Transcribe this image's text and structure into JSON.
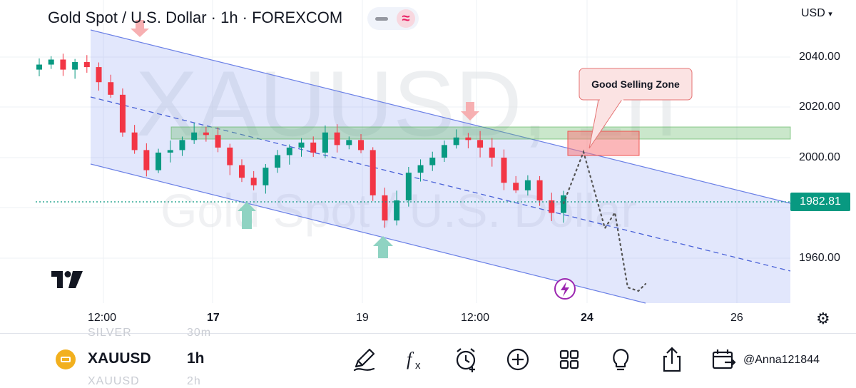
{
  "header": {
    "title": "Gold Spot / U.S. Dollar · 1h · FOREXCOM",
    "currency": "USD"
  },
  "chart_data": {
    "type": "candlestick",
    "symbol": "XAUUSD",
    "interval": "1h",
    "watermark_symbol": "XAUUSD, 1h",
    "watermark_name": "Gold Spot / U.S. Dollar",
    "y_ticks": [
      "2040.00",
      "2020.00",
      "2000.00",
      "1960.00"
    ],
    "current_price": "1982.81",
    "x_ticks": [
      "12:00",
      "17",
      "19",
      "12:00",
      "24",
      "26"
    ],
    "bold_x_ticks": [
      "17",
      "24"
    ],
    "annotation": "Good Selling Zone",
    "ylim": [
      1945,
      2058
    ],
    "closes": [
      2037,
      2039,
      2035,
      2038,
      2036,
      2030,
      2025,
      2010,
      2003,
      1995,
      2002,
      2003,
      2007,
      2010,
      2009,
      2004,
      1997,
      1992,
      1989,
      1996,
      2001,
      2004,
      2006,
      2002,
      2010,
      2005,
      2007,
      2003,
      1985,
      1975,
      1983,
      1994,
      1997,
      2000,
      2005,
      2008,
      2007,
      2004,
      2000,
      1990,
      1987,
      1991,
      1983,
      1978,
      1985
    ],
    "sell_zone": [
      2000,
      2010
    ],
    "resistance_band": [
      2007,
      2012
    ],
    "colors": {
      "up": "#089981",
      "down": "#f23645",
      "channel": "#5b74e6",
      "zone": "#4caf50",
      "sell": "#f77c80"
    }
  },
  "ghost_rows": {
    "above_symbol": "SILVER",
    "above_tf": "30m",
    "below_symbol": "XAUUSD",
    "below_tf": "2h"
  },
  "bottom_bar": {
    "symbol": "XAUUSD",
    "timeframe": "1h",
    "tools": [
      "draw-icon",
      "indicators-icon",
      "alert-icon",
      "add-icon",
      "layout-icon",
      "ideas-icon",
      "share-icon",
      "replay-icon"
    ],
    "user_watermark": "@Anna121844"
  }
}
